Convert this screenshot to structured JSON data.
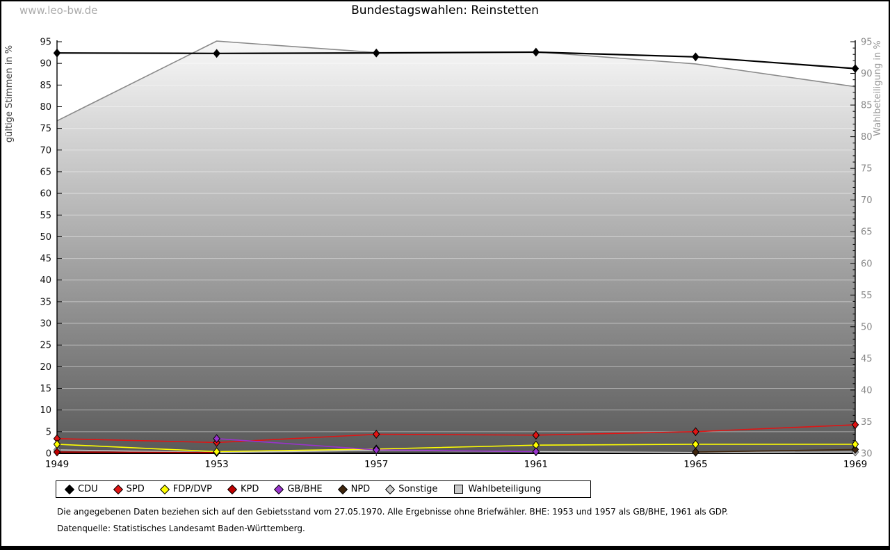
{
  "watermark": "www.leo-bw.de",
  "title": "Bundestagswahlen: Reinstetten",
  "footnotes": {
    "line1": "Die angegebenen Daten beziehen sich auf den Gebietsstand vom 27.05.1970. Alle Ergebnisse ohne Briefwähler. BHE: 1953 und 1957 als GB/BHE, 1961 als GDP.",
    "line2": "Datenquelle: Statistisches Landesamt Baden-Württemberg."
  },
  "chart_data": {
    "type": "line",
    "title": "Bundestagswahlen: Reinstetten",
    "categories": [
      1949,
      1953,
      1957,
      1961,
      1965,
      1969
    ],
    "xlabel": "",
    "left_axis": {
      "label": "gültige Stimmen in %",
      "min": 0,
      "max": 95,
      "step": 5
    },
    "right_axis": {
      "label": "Wahlbeteiligung in %",
      "min": 30,
      "max": 95,
      "step": 5
    },
    "grid": true,
    "legend_position": "bottom",
    "series": [
      {
        "name": "CDU",
        "color": "#000000",
        "axis": "left",
        "marker": "diamond",
        "values": [
          92.4,
          92.3,
          92.4,
          92.6,
          91.5,
          88.8
        ]
      },
      {
        "name": "SPD",
        "color": "#e01414",
        "axis": "left",
        "marker": "diamond",
        "values": [
          3.4,
          2.5,
          4.4,
          4.2,
          5.0,
          6.6
        ]
      },
      {
        "name": "FDP/DVP",
        "color": "#ffff00",
        "axis": "left",
        "marker": "diamond",
        "values": [
          2.1,
          0.4,
          1.0,
          1.9,
          2.1,
          2.1
        ]
      },
      {
        "name": "KPD",
        "color": "#c00000",
        "axis": "left",
        "marker": "diamond",
        "values": [
          0.3,
          0.2,
          null,
          null,
          null,
          null
        ]
      },
      {
        "name": "GB/BHE",
        "color": "#9933cc",
        "axis": "left",
        "marker": "diamond",
        "values": [
          null,
          3.4,
          0.8,
          0.4,
          null,
          null
        ]
      },
      {
        "name": "NPD",
        "color": "#40260e",
        "axis": "left",
        "marker": "diamond",
        "values": [
          null,
          null,
          null,
          null,
          0.3,
          0.9
        ]
      },
      {
        "name": "Sonstige",
        "color": "#cccccc",
        "axis": "left",
        "marker": "diamond",
        "values": [
          0.8,
          0.2,
          0.7,
          0.4,
          0.2,
          0.3
        ]
      },
      {
        "name": "Wahlbeteiligung",
        "color": "#c9c9c9",
        "axis": "right",
        "marker": "square-legend-only",
        "area": true,
        "line_color": "#8a8a8a",
        "values": [
          82.5,
          95.1,
          93.3,
          93.4,
          91.5,
          87.9
        ]
      }
    ]
  }
}
